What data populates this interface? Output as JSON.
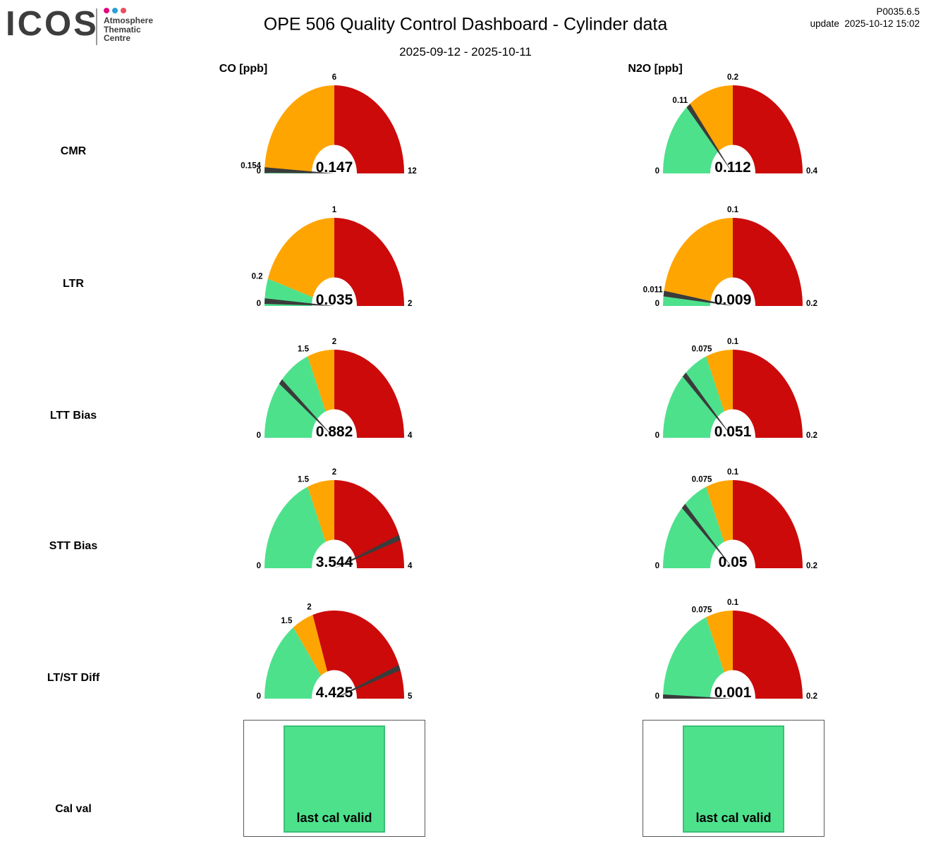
{
  "header": {
    "logo_text": "ICOS",
    "logo_sub": [
      "Atmosphere",
      "Thematic",
      "Centre"
    ],
    "logo_dot_colors": [
      "#e5097f",
      "#2a9fd8",
      "#e94f5f"
    ],
    "title": "OPE 506 Quality Control Dashboard - Cylinder data",
    "subtitle": "2025-09-12 - 2025-10-11",
    "version": "P0035.6.5",
    "update_label": "update",
    "update_time": "2025-10-12 15:02"
  },
  "columns": [
    {
      "label": "CO [ppb]"
    },
    {
      "label": "N2O [ppb]"
    }
  ],
  "rows": [
    "CMR",
    "LTR",
    "LTT Bias",
    "STT Bias",
    "LT/ST Diff",
    "Cal val"
  ],
  "colors": {
    "green": "#4de18c",
    "green_border": "#3bbf78",
    "orange": "#ffa502",
    "red": "#cc0a0a",
    "needle": "#3b3b3b",
    "logo_gray": "#3d3d3d"
  },
  "chart_data": [
    {
      "type": "gauge",
      "row": "CMR",
      "column": "CO [ppb]",
      "value": 0.147,
      "value_label": "0.147",
      "min": 0,
      "max": 12,
      "segments": [
        {
          "color": "green",
          "from": 0,
          "to": 0.154
        },
        {
          "color": "orange",
          "from": 0.154,
          "to": 6
        },
        {
          "color": "red",
          "from": 6,
          "to": 12
        }
      ],
      "ticks": [
        {
          "v": 0,
          "label": "0"
        },
        {
          "v": 0.154,
          "label": "0.154"
        },
        {
          "v": 6,
          "label": "6"
        },
        {
          "v": 12,
          "label": "12"
        }
      ]
    },
    {
      "type": "gauge",
      "row": "CMR",
      "column": "N2O [ppb]",
      "value": 0.112,
      "value_label": "0.112",
      "min": 0,
      "max": 0.4,
      "segments": [
        {
          "color": "green",
          "from": 0,
          "to": 0.11
        },
        {
          "color": "orange",
          "from": 0.11,
          "to": 0.2
        },
        {
          "color": "red",
          "from": 0.2,
          "to": 0.4
        }
      ],
      "ticks": [
        {
          "v": 0,
          "label": "0"
        },
        {
          "v": 0.11,
          "label": "0.11"
        },
        {
          "v": 0.2,
          "label": "0.2"
        },
        {
          "v": 0.4,
          "label": "0.4"
        }
      ]
    },
    {
      "type": "gauge",
      "row": "LTR",
      "column": "CO [ppb]",
      "value": 0.035,
      "value_label": "0.035",
      "min": 0,
      "max": 2,
      "segments": [
        {
          "color": "green",
          "from": 0,
          "to": 0.2
        },
        {
          "color": "orange",
          "from": 0.2,
          "to": 1
        },
        {
          "color": "red",
          "from": 1,
          "to": 2
        }
      ],
      "ticks": [
        {
          "v": 0,
          "label": "0"
        },
        {
          "v": 0.2,
          "label": "0.2"
        },
        {
          "v": 1,
          "label": "1"
        },
        {
          "v": 2,
          "label": "2"
        }
      ]
    },
    {
      "type": "gauge",
      "row": "LTR",
      "column": "N2O [ppb]",
      "value": 0.009,
      "value_label": "0.009",
      "min": 0,
      "max": 0.2,
      "segments": [
        {
          "color": "green",
          "from": 0,
          "to": 0.011
        },
        {
          "color": "orange",
          "from": 0.011,
          "to": 0.1
        },
        {
          "color": "red",
          "from": 0.1,
          "to": 0.2
        }
      ],
      "ticks": [
        {
          "v": 0,
          "label": "0"
        },
        {
          "v": 0.011,
          "label": "0.011"
        },
        {
          "v": 0.1,
          "label": "0.1"
        },
        {
          "v": 0.2,
          "label": "0.2"
        }
      ]
    },
    {
      "type": "gauge",
      "row": "LTT Bias",
      "column": "CO [ppb]",
      "value": 0.882,
      "value_label": "0.882",
      "min": 0,
      "max": 4,
      "segments": [
        {
          "color": "green",
          "from": 0,
          "to": 1.5
        },
        {
          "color": "orange",
          "from": 1.5,
          "to": 2
        },
        {
          "color": "red",
          "from": 2,
          "to": 4
        }
      ],
      "ticks": [
        {
          "v": 0,
          "label": "0"
        },
        {
          "v": 1.5,
          "label": "1.5"
        },
        {
          "v": 2,
          "label": "2"
        },
        {
          "v": 4,
          "label": "4"
        }
      ]
    },
    {
      "type": "gauge",
      "row": "LTT Bias",
      "column": "N2O [ppb]",
      "value": 0.051,
      "value_label": "0.051",
      "min": 0,
      "max": 0.2,
      "segments": [
        {
          "color": "green",
          "from": 0,
          "to": 0.075
        },
        {
          "color": "orange",
          "from": 0.075,
          "to": 0.1
        },
        {
          "color": "red",
          "from": 0.1,
          "to": 0.2
        }
      ],
      "ticks": [
        {
          "v": 0,
          "label": "0"
        },
        {
          "v": 0.075,
          "label": "0.075"
        },
        {
          "v": 0.1,
          "label": "0.1"
        },
        {
          "v": 0.2,
          "label": "0.2"
        }
      ]
    },
    {
      "type": "gauge",
      "row": "STT Bias",
      "column": "CO [ppb]",
      "value": 3.544,
      "value_label": "3.544",
      "min": 0,
      "max": 4,
      "segments": [
        {
          "color": "green",
          "from": 0,
          "to": 1.5
        },
        {
          "color": "orange",
          "from": 1.5,
          "to": 2
        },
        {
          "color": "red",
          "from": 2,
          "to": 4
        }
      ],
      "ticks": [
        {
          "v": 0,
          "label": "0"
        },
        {
          "v": 1.5,
          "label": "1.5"
        },
        {
          "v": 2,
          "label": "2"
        },
        {
          "v": 4,
          "label": "4"
        }
      ]
    },
    {
      "type": "gauge",
      "row": "STT Bias",
      "column": "N2O [ppb]",
      "value": 0.05,
      "value_label": "0.05",
      "min": 0,
      "max": 0.2,
      "segments": [
        {
          "color": "green",
          "from": 0,
          "to": 0.075
        },
        {
          "color": "orange",
          "from": 0.075,
          "to": 0.1
        },
        {
          "color": "red",
          "from": 0.1,
          "to": 0.2
        }
      ],
      "ticks": [
        {
          "v": 0,
          "label": "0"
        },
        {
          "v": 0.075,
          "label": "0.075"
        },
        {
          "v": 0.1,
          "label": "0.1"
        },
        {
          "v": 0.2,
          "label": "0.2"
        }
      ]
    },
    {
      "type": "gauge",
      "row": "LT/ST Diff",
      "column": "CO [ppb]",
      "value": 4.425,
      "value_label": "4.425",
      "min": 0,
      "max": 5,
      "segments": [
        {
          "color": "green",
          "from": 0,
          "to": 1.5
        },
        {
          "color": "orange",
          "from": 1.5,
          "to": 2
        },
        {
          "color": "red",
          "from": 2,
          "to": 5
        }
      ],
      "ticks": [
        {
          "v": 0,
          "label": "0"
        },
        {
          "v": 1.5,
          "label": "1.5"
        },
        {
          "v": 2,
          "label": "2"
        },
        {
          "v": 5,
          "label": "5"
        }
      ]
    },
    {
      "type": "gauge",
      "row": "LT/ST Diff",
      "column": "N2O [ppb]",
      "value": 0.001,
      "value_label": "0.001",
      "min": 0,
      "max": 0.2,
      "segments": [
        {
          "color": "green",
          "from": 0,
          "to": 0.075
        },
        {
          "color": "orange",
          "from": 0.075,
          "to": 0.1
        },
        {
          "color": "red",
          "from": 0.1,
          "to": 0.2
        }
      ],
      "ticks": [
        {
          "v": 0,
          "label": "0"
        },
        {
          "v": 0.075,
          "label": "0.075"
        },
        {
          "v": 0.1,
          "label": "0.1"
        },
        {
          "v": 0.2,
          "label": "0.2"
        }
      ]
    }
  ],
  "cal_row": {
    "boxes": [
      {
        "column": "CO [ppb]",
        "text": "last cal valid",
        "status": "green"
      },
      {
        "column": "N2O [ppb]",
        "text": "last cal valid",
        "status": "green"
      }
    ]
  }
}
